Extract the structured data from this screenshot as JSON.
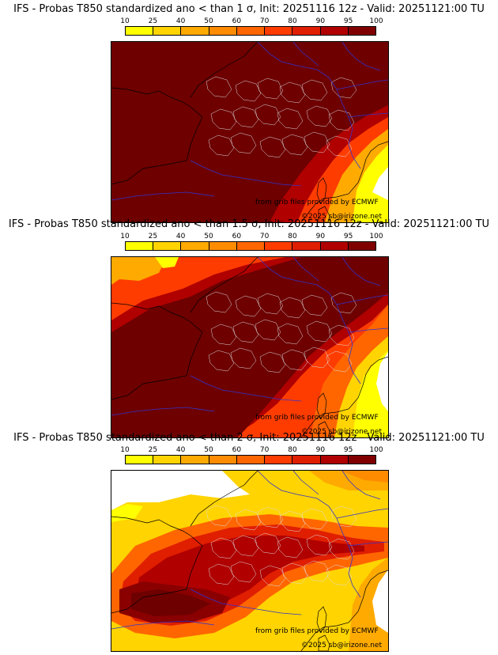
{
  "panels": [
    {
      "title": "IFS - Probas T850  standardized ano < than 1 σ, Init: 20251116 12z - Valid: 20251121:00 TU",
      "coverage": "nearly all",
      "credit_source": "from grib files provided by ECMWF",
      "credit_copyright": "©2025 sb@irizone.net"
    },
    {
      "title": "IFS - Probas T850  standardized ano < than 1.5 σ, Init: 20251116 12z - Valid: 20251121:00 TU",
      "coverage": "most",
      "credit_source": "from grib files provided by ECMWF",
      "credit_copyright": "©2025 sb@irizone.net"
    },
    {
      "title": "IFS - Probas T850  standardized ano < than 2 σ, Init: 20251116 12z - Valid: 20251121:00 TU",
      "coverage": "central band",
      "credit_source": "from grib files provided by ECMWF",
      "credit_copyright": "©2025 sb@irizone.net"
    }
  ],
  "colorbar": {
    "ticks": [
      "10",
      "25",
      "40",
      "50",
      "60",
      "70",
      "80",
      "90",
      "95",
      "100"
    ],
    "colors": [
      "#ffff00",
      "#ffd400",
      "#ffaa00",
      "#ff8c00",
      "#ff6600",
      "#ff3c00",
      "#e01e00",
      "#b00000",
      "#800000"
    ]
  },
  "map_colors": {
    "p100": "#6e0000",
    "p95": "#8a0000",
    "p90": "#b00000",
    "p80": "#e01e00",
    "p70": "#ff3c00",
    "p60": "#ff6600",
    "p50": "#ff8c00",
    "p40": "#ffaa00",
    "p25": "#ffd400",
    "p10": "#ffff00",
    "none": "#ffffff",
    "borders": "#3333cc",
    "regions": "#dddddd",
    "coast": "#000000"
  }
}
